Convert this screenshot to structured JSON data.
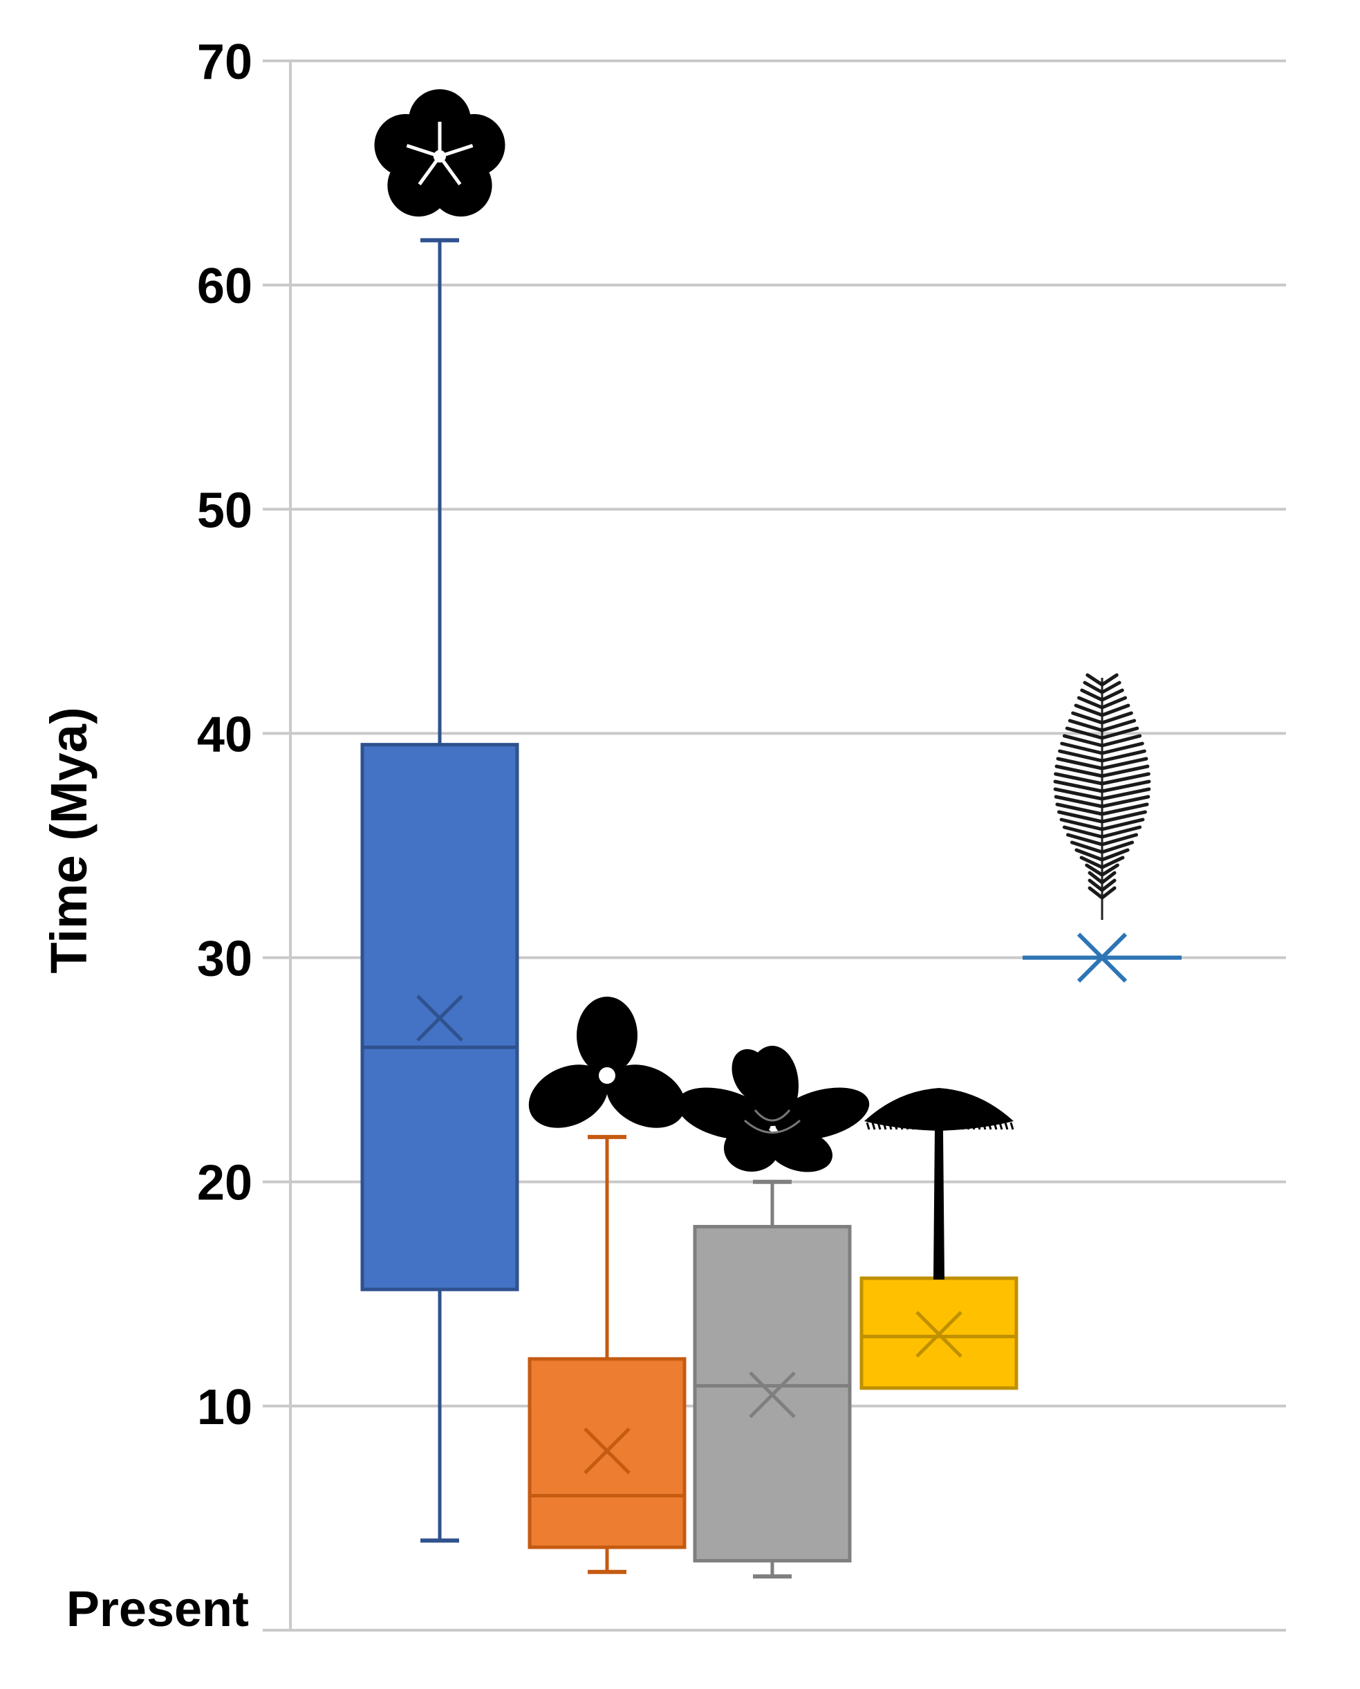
{
  "chart_data": {
    "type": "box",
    "ylabel": "Time (Mya)",
    "ylim": [
      0,
      70
    ],
    "y_ticks": [
      {
        "value": 0,
        "label": "Present"
      },
      {
        "value": 10,
        "label": "10"
      },
      {
        "value": 20,
        "label": "20"
      },
      {
        "value": 30,
        "label": "30"
      },
      {
        "value": 40,
        "label": "40"
      },
      {
        "value": 50,
        "label": "50"
      },
      {
        "value": 60,
        "label": "60"
      },
      {
        "value": 70,
        "label": "70"
      }
    ],
    "grid": true,
    "series": [
      {
        "color": "#4472C4",
        "edge": "#2F528F",
        "icon": "five-petal-flower-icon",
        "min": 4.0,
        "q1": 15.2,
        "median": 26.0,
        "q3": 39.5,
        "max": 62.0,
        "mean": 27.3
      },
      {
        "color": "#ED7D31",
        "edge": "#C55A11",
        "icon": "three-petal-flower-icon",
        "min": 2.6,
        "q1": 3.7,
        "median": 6.0,
        "q3": 12.1,
        "max": 22.0,
        "mean": 8.0
      },
      {
        "color": "#A5A5A5",
        "edge": "#7F7F7F",
        "icon": "magnolia-flower-icon",
        "min": 2.4,
        "q1": 3.1,
        "median": 10.9,
        "q3": 18.0,
        "max": 20.0,
        "mean": 10.5
      },
      {
        "color": "#FFC000",
        "edge": "#BF9000",
        "icon": "umbrella-tree-icon",
        "min": 10.8,
        "q1": 10.8,
        "median": 13.1,
        "q3": 15.7,
        "max": 15.7,
        "mean": 13.2
      },
      {
        "color": "#2E75B6",
        "edge": "#2E75B6",
        "icon": "fern-frond-icon",
        "min": 30.0,
        "q1": 30.0,
        "median": 30.0,
        "q3": 30.0,
        "max": 30.0,
        "mean": 30.0
      }
    ]
  }
}
